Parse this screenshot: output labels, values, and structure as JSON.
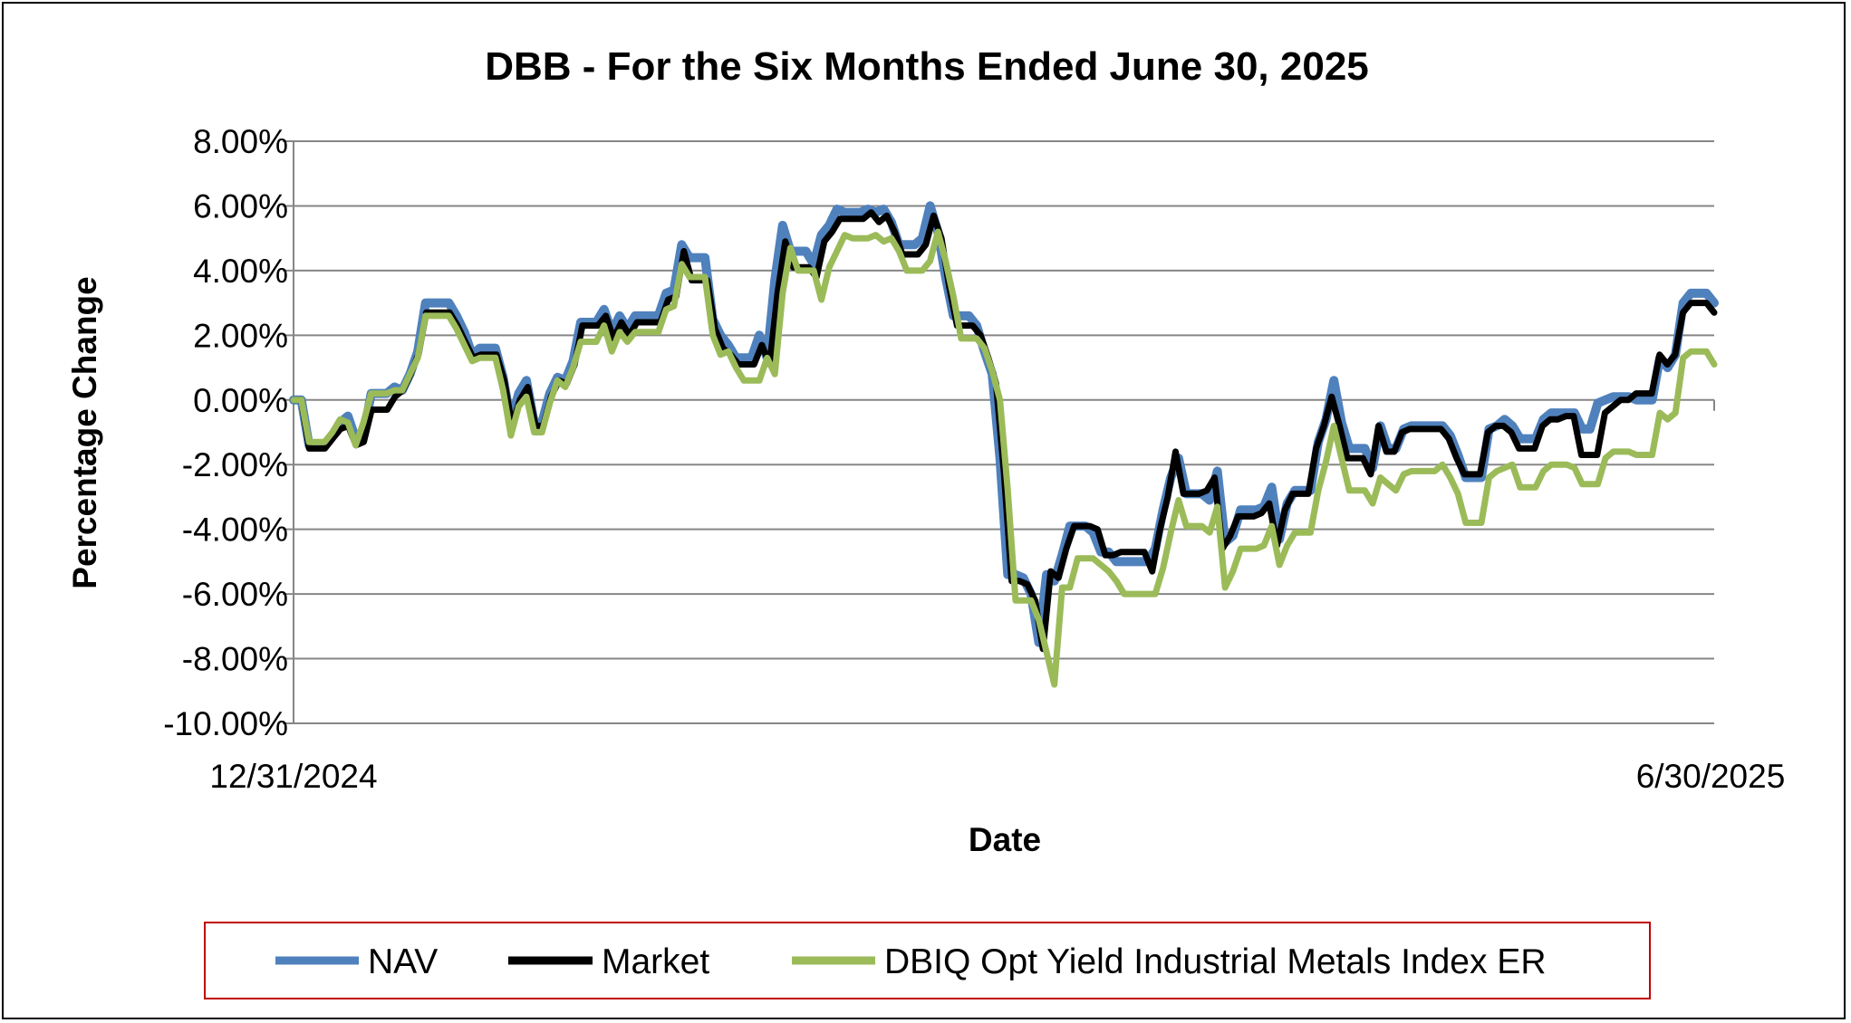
{
  "chart_data": {
    "type": "line",
    "title": "DBB - For the Six Months Ended June 30, 2025",
    "xlabel": "Date",
    "ylabel": "Percentage Change",
    "x_start_label": "12/31/2024",
    "x_end_label": "6/30/2025",
    "ylim": [
      -10,
      8
    ],
    "yticks": [
      "8.00%",
      "6.00%",
      "4.00%",
      "2.00%",
      "0.00%",
      "-2.00%",
      "-4.00%",
      "-6.00%",
      "-8.00%",
      "-10.00%"
    ],
    "grid": true,
    "legend_position": "bottom",
    "series": [
      {
        "name": "NAV",
        "color": "#4f81bd",
        "values": [
          0,
          0,
          -1.4,
          -1.4,
          -1.4,
          -1.1,
          -0.7,
          -0.5,
          -1.2,
          -1.1,
          0.2,
          0.2,
          0.2,
          0.4,
          0.3,
          0.8,
          1.5,
          3.0,
          3.0,
          3.0,
          3.0,
          2.6,
          2.1,
          1.4,
          1.6,
          1.6,
          1.6,
          0.7,
          -0.7,
          0.2,
          0.6,
          -0.7,
          -0.7,
          0.2,
          0.7,
          0.6,
          1.2,
          2.4,
          2.4,
          2.4,
          2.8,
          2.1,
          2.6,
          2.2,
          2.6,
          2.6,
          2.6,
          2.6,
          3.3,
          3.4,
          4.8,
          4.4,
          4.4,
          4.4,
          2.5,
          2.0,
          1.7,
          1.3,
          1.3,
          1.3,
          2.0,
          1.3,
          3.7,
          5.4,
          4.6,
          4.6,
          4.6,
          4.2,
          5.1,
          5.4,
          5.9,
          5.8,
          5.8,
          5.8,
          5.9,
          5.8,
          5.9,
          5.5,
          4.8,
          4.8,
          4.8,
          5.0,
          6.0,
          5.2,
          3.8,
          2.6,
          2.6,
          2.6,
          2.3,
          1.5,
          0.8,
          -1.8,
          -5.4,
          -5.4,
          -5.5,
          -6.0,
          -7.5,
          -5.4,
          -5.6,
          -4.8,
          -3.9,
          -3.9,
          -3.9,
          -4.1,
          -4.7,
          -4.7,
          -5.0,
          -5.0,
          -5.0,
          -5.0,
          -5.0,
          -4.6,
          -3.4,
          -2.4,
          -1.8,
          -2.9,
          -2.9,
          -2.9,
          -3.1,
          -2.2,
          -4.4,
          -4.2,
          -3.4,
          -3.4,
          -3.4,
          -3.3,
          -2.7,
          -4.3,
          -3.2,
          -2.8,
          -2.8,
          -2.8,
          -1.3,
          -0.6,
          0.6,
          -0.7,
          -1.5,
          -1.5,
          -1.5,
          -2.1,
          -0.8,
          -1.5,
          -1.5,
          -0.9,
          -0.8,
          -0.8,
          -0.8,
          -0.8,
          -0.8,
          -1.1,
          -1.7,
          -2.4,
          -2.4,
          -2.4,
          -0.9,
          -0.8,
          -0.6,
          -0.8,
          -1.2,
          -1.2,
          -1.2,
          -0.6,
          -0.4,
          -0.4,
          -0.4,
          -0.4,
          -0.9,
          -0.9,
          -0.1,
          0.0,
          0.1,
          0.1,
          0.1,
          0.0,
          0.0,
          0.0,
          1.3,
          1.0,
          1.4,
          3.0,
          3.3,
          3.3,
          3.3,
          3.0
        ]
      },
      {
        "name": "Market",
        "color": "#000000",
        "values": [
          0,
          0,
          -1.5,
          -1.5,
          -1.5,
          -1.2,
          -0.9,
          -0.8,
          -1.4,
          -1.3,
          -0.3,
          -0.3,
          -0.3,
          0.1,
          0.3,
          0.8,
          1.4,
          2.7,
          2.7,
          2.7,
          2.7,
          2.3,
          1.8,
          1.3,
          1.4,
          1.4,
          1.4,
          0.6,
          -0.8,
          0.0,
          0.4,
          -0.8,
          -0.8,
          0.1,
          0.6,
          0.5,
          1.1,
          2.3,
          2.3,
          2.3,
          2.6,
          1.9,
          2.4,
          2.0,
          2.4,
          2.4,
          2.4,
          2.4,
          3.1,
          3.2,
          4.6,
          3.7,
          3.7,
          3.7,
          2.2,
          1.6,
          1.4,
          1.1,
          1.1,
          1.1,
          1.7,
          1.1,
          3.3,
          4.9,
          4.1,
          4.1,
          4.1,
          3.8,
          4.9,
          5.2,
          5.6,
          5.6,
          5.6,
          5.6,
          5.8,
          5.5,
          5.7,
          5.2,
          4.5,
          4.5,
          4.5,
          4.8,
          5.7,
          5.0,
          3.5,
          2.3,
          2.3,
          2.3,
          2.0,
          1.3,
          0.5,
          -2.2,
          -5.6,
          -5.6,
          -5.7,
          -6.2,
          -7.7,
          -5.3,
          -5.5,
          -4.6,
          -3.9,
          -3.9,
          -3.9,
          -4.0,
          -4.8,
          -4.8,
          -4.7,
          -4.7,
          -4.7,
          -4.7,
          -5.3,
          -4.0,
          -3.0,
          -1.6,
          -2.9,
          -2.9,
          -2.9,
          -2.8,
          -2.4,
          -4.6,
          -4.2,
          -3.6,
          -3.6,
          -3.6,
          -3.5,
          -3.2,
          -4.5,
          -3.4,
          -2.9,
          -2.9,
          -2.9,
          -1.5,
          -0.8,
          0.1,
          -0.8,
          -1.8,
          -1.8,
          -1.8,
          -2.3,
          -0.8,
          -1.6,
          -1.6,
          -1.0,
          -0.9,
          -0.9,
          -0.9,
          -0.9,
          -0.9,
          -1.2,
          -1.8,
          -2.3,
          -2.3,
          -2.3,
          -1.0,
          -0.8,
          -0.8,
          -1.0,
          -1.5,
          -1.5,
          -1.5,
          -0.8,
          -0.6,
          -0.6,
          -0.5,
          -0.5,
          -1.7,
          -1.7,
          -1.7,
          -0.4,
          -0.2,
          0.0,
          0.0,
          0.2,
          0.2,
          0.2,
          1.4,
          1.1,
          1.4,
          2.7,
          3.0,
          3.0,
          3.0,
          2.7
        ]
      },
      {
        "name": "DBIQ Opt Yield Industrial Metals Index ER",
        "color": "#9bbb59",
        "values": [
          0,
          0,
          -1.3,
          -1.3,
          -1.3,
          -1.0,
          -0.6,
          -0.7,
          -1.4,
          -0.7,
          0.2,
          0.2,
          0.2,
          0.3,
          0.3,
          0.8,
          1.3,
          2.6,
          2.6,
          2.6,
          2.6,
          2.2,
          1.7,
          1.2,
          1.3,
          1.3,
          1.3,
          0.3,
          -1.1,
          -0.2,
          0.1,
          -1.0,
          -1.0,
          -0.1,
          0.6,
          0.4,
          1.0,
          1.8,
          1.8,
          1.8,
          2.3,
          1.5,
          2.1,
          1.8,
          2.1,
          2.1,
          2.1,
          2.1,
          2.8,
          2.9,
          4.2,
          3.8,
          3.8,
          3.8,
          2.0,
          1.4,
          1.5,
          1.0,
          0.6,
          0.6,
          0.6,
          1.3,
          0.8,
          3.3,
          4.7,
          4.0,
          4.0,
          4.0,
          3.1,
          4.1,
          4.6,
          5.1,
          5.0,
          5.0,
          5.0,
          5.1,
          4.9,
          5.0,
          4.6,
          4.0,
          4.0,
          4.0,
          4.3,
          5.2,
          4.3,
          3.2,
          1.9,
          1.9,
          1.9,
          1.6,
          0.9,
          0.0,
          -2.8,
          -6.2,
          -6.2,
          -6.2,
          -6.8,
          -7.8,
          -8.8,
          -5.8,
          -5.8,
          -4.9,
          -4.9,
          -4.9,
          -5.1,
          -5.3,
          -5.6,
          -6.0,
          -6.0,
          -6.0,
          -6.0,
          -6.0,
          -5.2,
          -4.1,
          -3.1,
          -3.9,
          -3.9,
          -3.9,
          -4.1,
          -3.3,
          -5.8,
          -5.3,
          -4.6,
          -4.6,
          -4.6,
          -4.5,
          -3.9,
          -5.1,
          -4.5,
          -4.1,
          -4.1,
          -4.1,
          -2.8,
          -1.9,
          -0.8,
          -1.8,
          -2.8,
          -2.8,
          -2.8,
          -3.2,
          -2.4,
          -2.6,
          -2.8,
          -2.3,
          -2.2,
          -2.2,
          -2.2,
          -2.2,
          -2.0,
          -2.4,
          -2.9,
          -3.8,
          -3.8,
          -3.8,
          -2.4,
          -2.2,
          -2.1,
          -2.0,
          -2.7,
          -2.7,
          -2.7,
          -2.2,
          -2.0,
          -2.0,
          -2.0,
          -2.1,
          -2.6,
          -2.6,
          -2.6,
          -1.8,
          -1.6,
          -1.6,
          -1.6,
          -1.7,
          -1.7,
          -1.7,
          -0.4,
          -0.6,
          -0.4,
          1.3,
          1.5,
          1.5,
          1.5,
          1.1
        ]
      }
    ]
  }
}
